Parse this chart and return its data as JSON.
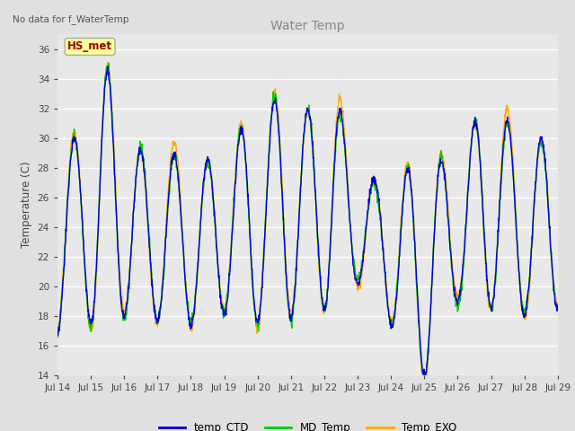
{
  "title": "Water Temp",
  "ylabel": "Temperature (C)",
  "top_left_text": "No data for f_WaterTemp",
  "hs_met_label": "HS_met",
  "ylim": [
    14,
    37
  ],
  "yticks": [
    14,
    16,
    18,
    20,
    22,
    24,
    26,
    28,
    30,
    32,
    34,
    36
  ],
  "x_tick_labels": [
    "Jul 14",
    "Jul 15",
    "Jul 16",
    "Jul 17",
    "Jul 18",
    "Jul 19",
    "Jul 20",
    "Jul 21",
    "Jul 22",
    "Jul 23",
    "Jul 24",
    "Jul 25",
    "Jul 26",
    "Jul 27",
    "Jul 28",
    "Jul 29"
  ],
  "line_colors": {
    "temp_CTD": "#0000dd",
    "MD_Temp": "#00cc00",
    "Temp_EXO": "#ffaa00"
  },
  "fig_bg": "#e0e0e0",
  "ax_bg": "#e8e8e8",
  "grid_color": "#ffffff",
  "title_color": "#888888",
  "label_color": "#444444",
  "hs_met_bg": "#ffff99",
  "hs_met_text_color": "#990000",
  "hs_met_border_color": "#aaaaaa",
  "linewidth": 1.0
}
